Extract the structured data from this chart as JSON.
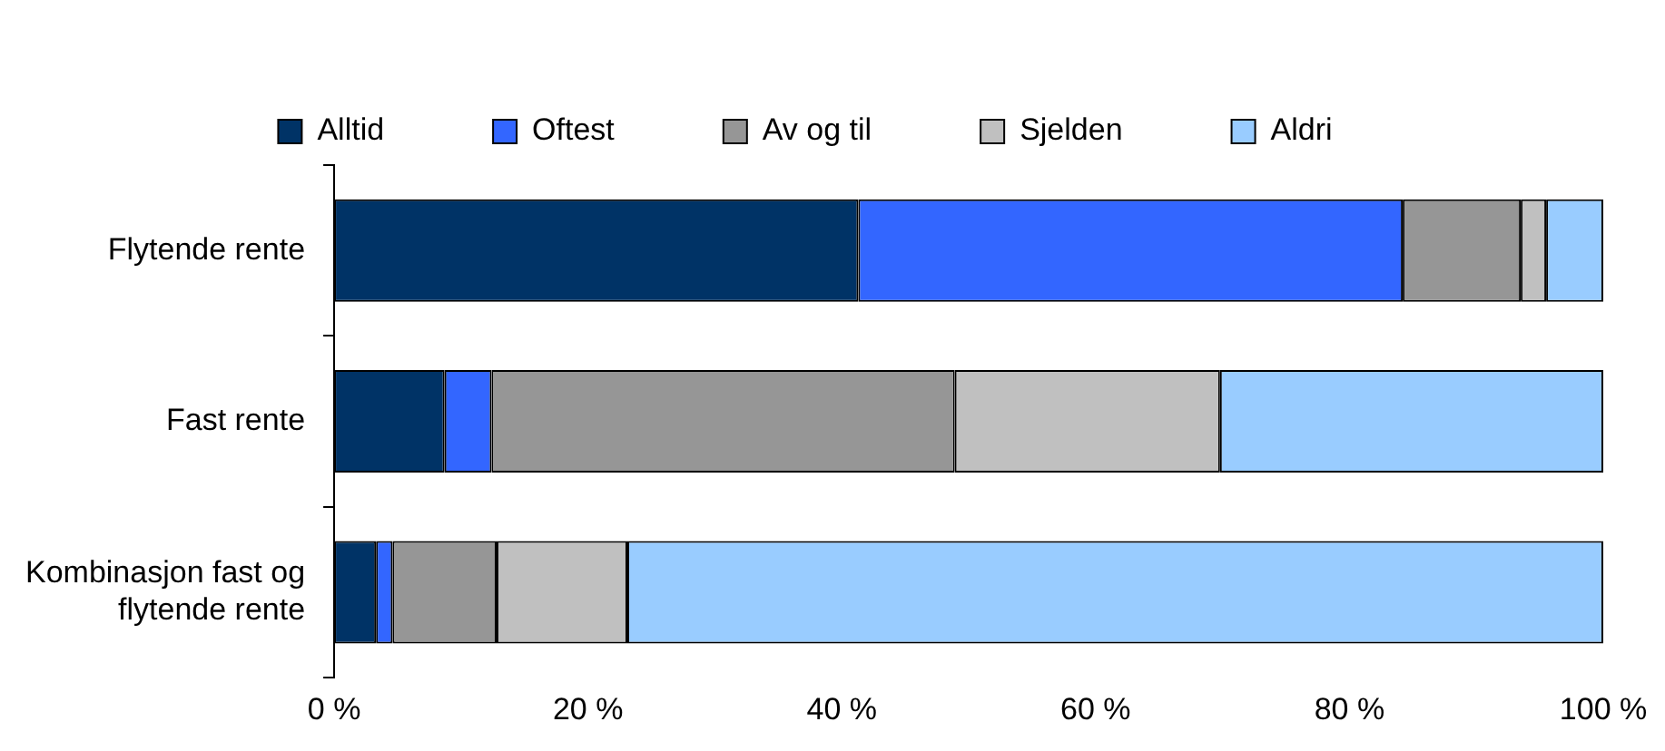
{
  "chart_data": {
    "type": "bar",
    "orientation": "horizontal",
    "stacked": true,
    "legend": "top",
    "grid": false,
    "categories": [
      "Flytende rente",
      "Fast rente",
      "Kombinasjon fast og flytende rente"
    ],
    "series": [
      {
        "name": "Alltid",
        "color": "#003366",
        "values": [
          41.3,
          8.7,
          3.3
        ]
      },
      {
        "name": "Oftest",
        "color": "#3366ff",
        "values": [
          42.9,
          3.7,
          1.3
        ]
      },
      {
        "name": "Av og til",
        "color": "#969696",
        "values": [
          9.3,
          36.5,
          8.2
        ]
      },
      {
        "name": "Sjelden",
        "color": "#c0c0c0",
        "values": [
          2.0,
          20.9,
          10.3
        ]
      },
      {
        "name": "Aldri",
        "color": "#99ccff",
        "values": [
          4.5,
          30.2,
          76.9
        ]
      }
    ],
    "xlim": [
      0,
      100
    ],
    "xticks": [
      {
        "value": 0,
        "label": "0 %"
      },
      {
        "value": 20,
        "label": "20 %"
      },
      {
        "value": 40,
        "label": "40 %"
      },
      {
        "value": 60,
        "label": "60 %"
      },
      {
        "value": 80,
        "label": "80 %"
      },
      {
        "value": 100,
        "label": "100 %"
      }
    ]
  }
}
